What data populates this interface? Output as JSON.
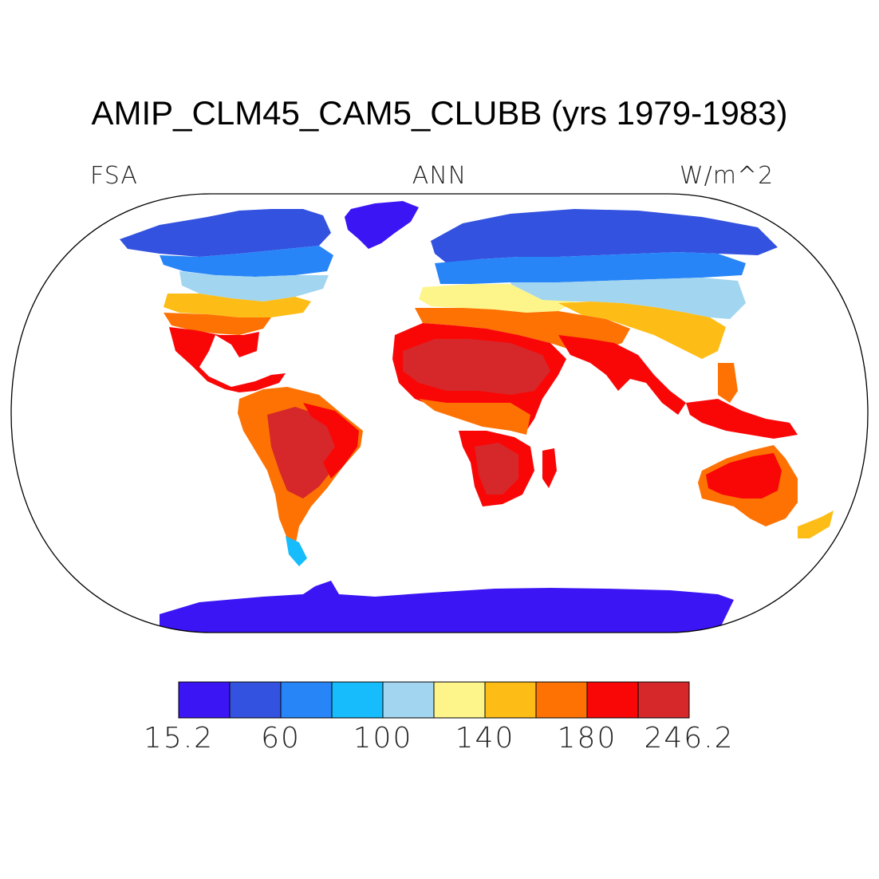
{
  "title": "AMIP_CLM45_CAM5_CLUBB (yrs 1979-1983)",
  "left_label": "FSA",
  "center_label": "ANN",
  "right_label": "W/m^2",
  "colorbar": {
    "colors": [
      "#3c15f5",
      "#3352e0",
      "#2785f7",
      "#16bcfb",
      "#a2d5f0",
      "#fdf58a",
      "#fdbd16",
      "#fd7203",
      "#f90707",
      "#d6282a"
    ],
    "labels": [
      "15.2",
      "60",
      "100",
      "140",
      "180",
      "246.2"
    ]
  }
}
